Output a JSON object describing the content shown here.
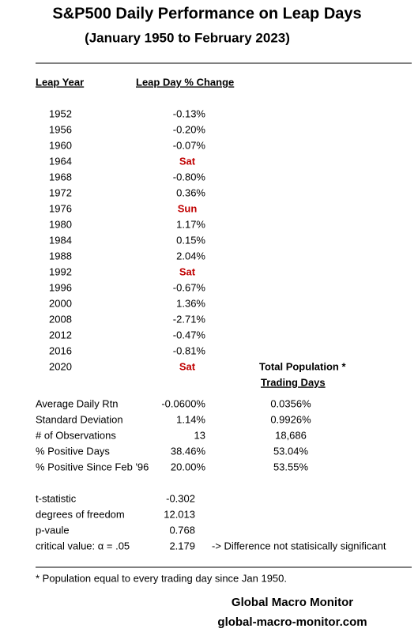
{
  "header": {
    "title": "S&P500 Daily Performance on Leap Days",
    "subtitle": "(January 1950 to February 2023)"
  },
  "table": {
    "columns": [
      "Leap Year",
      "Leap Day % Change"
    ],
    "rows": [
      [
        "1952",
        "-0.13%"
      ],
      [
        "1956",
        "-0.20%"
      ],
      [
        "1960",
        "-0.07%"
      ],
      [
        "1964",
        "Sat"
      ],
      [
        "1968",
        "-0.80%"
      ],
      [
        "1972",
        "0.36%"
      ],
      [
        "1976",
        "Sun"
      ],
      [
        "1980",
        "1.17%"
      ],
      [
        "1984",
        "0.15%"
      ],
      [
        "1988",
        "2.04%"
      ],
      [
        "1992",
        "Sat"
      ],
      [
        "1996",
        "-0.67%"
      ],
      [
        "2000",
        "1.36%"
      ],
      [
        "2008",
        "-2.71%"
      ],
      [
        "2012",
        "-0.47%"
      ],
      [
        "2016",
        "-0.81%"
      ],
      [
        "2020",
        "Sat"
      ]
    ]
  },
  "population_header": [
    "Total Population *",
    "Trading Days"
  ],
  "stats": {
    "rows": [
      [
        "Average Daily Rtn",
        "-0.0600%",
        "0.0356%"
      ],
      [
        "Standard Deviation",
        "1.14%",
        "0.9926%"
      ],
      [
        "# of Observations",
        "13",
        "18,686"
      ],
      [
        "% Positive Days",
        "38.46%",
        "53.04%"
      ],
      [
        "% Positive Since Feb '96",
        "20.00%",
        "53.55%"
      ]
    ]
  },
  "tests": {
    "rows": [
      [
        "t-statistic",
        "-0.302"
      ],
      [
        "degrees of freedom",
        "12.013"
      ],
      [
        "p-vaule",
        "0.768"
      ],
      [
        "critical value: α = .05",
        "2.179"
      ]
    ],
    "note": "-> Difference not statisically significant"
  },
  "footnote": "* Population equal to every trading day since Jan 1950.",
  "footer": {
    "name": "Global Macro Monitor",
    "url": "global-macro-monitor.com"
  }
}
